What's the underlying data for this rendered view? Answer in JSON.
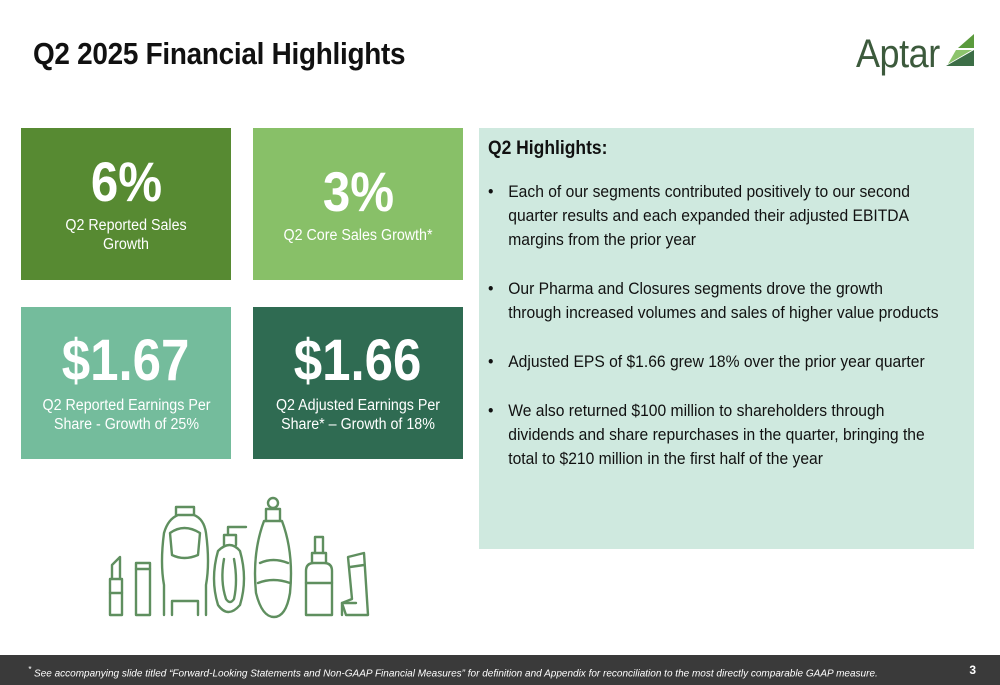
{
  "slide": {
    "title": "Q2 2025 Financial Highlights",
    "page_number": "3"
  },
  "logo": {
    "text": "Aptar"
  },
  "tiles": [
    {
      "value": "6%",
      "label": "Q2 Reported Sales Growth",
      "color": "#578a32"
    },
    {
      "value": "3%",
      "label": "Q2 Core Sales Growth*",
      "color": "#88c068"
    },
    {
      "value": "$1.67",
      "label": "Q2 Reported Earnings Per Share - Growth of 25%",
      "color": "#74bc9c"
    },
    {
      "value": "$1.66",
      "label": "Q2 Adjusted Earnings Per Share* – Growth of 18%",
      "color": "#2f6b52"
    }
  ],
  "highlights": {
    "title": "Q2 Highlights:",
    "bullet": "•",
    "items": [
      "Each of our segments contributed positively to our second quarter results and each expanded their adjusted EBITDA margins from the prior year",
      "Our Pharma and Closures segments drove the growth through increased volumes and sales of higher value products",
      "Adjusted EPS of $1.66 grew 18% over the prior year quarter",
      "We also returned $100 million to shareholders through dividends and share repurchases in the quarter, bringing the total to $210 million in the first half of the year"
    ],
    "background": "#cfe9df"
  },
  "illustration": {
    "icons": [
      "lipstick-icon",
      "tube-icon",
      "squeeze-bottle-icon",
      "pump-bottle-icon",
      "spray-bottle-icon",
      "nasal-spray-icon",
      "inhaler-icon"
    ],
    "stroke_color": "#5f8f5f"
  },
  "footer": {
    "asterisk": "*",
    "footnote": " See accompanying slide titled “Forward-Looking Statements and Non-GAAP Financial Measures” for definition and Appendix for reconciliation to the most directly comparable GAAP measure."
  }
}
